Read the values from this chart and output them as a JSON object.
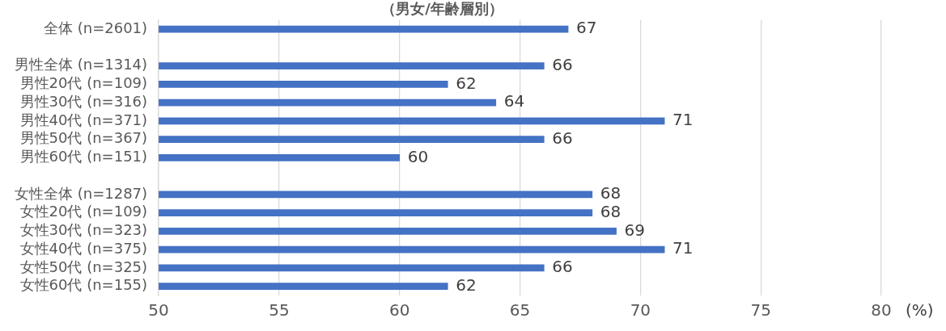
{
  "chart_data": {
    "type": "bar",
    "orientation": "horizontal",
    "title": "（男女/年齢層別）",
    "xlabel": "(%)",
    "categories": [
      "全体 (n=2601)",
      null,
      "男性全体 (n=1314)",
      "男性20代 (n=109)",
      "男性30代 (n=316)",
      "男性40代 (n=371)",
      "男性50代 (n=367)",
      "男性60代 (n=151)",
      null,
      "女性全体 (n=1287)",
      "女性20代 (n=109)",
      "女性30代 (n=323)",
      "女性40代 (n=375)",
      "女性50代 (n=325)",
      "女性60代 (n=155)"
    ],
    "values": [
      67,
      null,
      66,
      62,
      64,
      71,
      66,
      60,
      null,
      68,
      68,
      69,
      71,
      66,
      62
    ],
    "color": "#4472c4",
    "data_labels": true,
    "xlim": [
      50,
      80
    ],
    "xticks": [
      50,
      55,
      60,
      65,
      70,
      75,
      80
    ],
    "grid": "x",
    "legend": false
  }
}
